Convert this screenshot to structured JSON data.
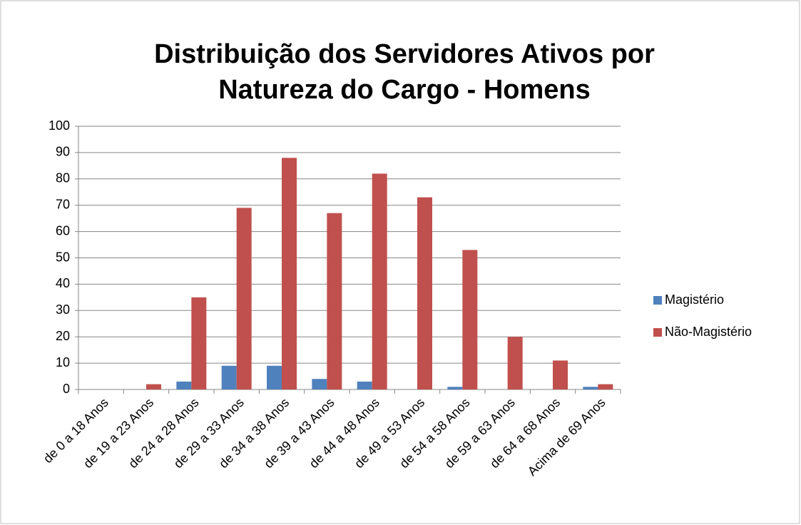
{
  "chart_data": {
    "type": "bar",
    "title": [
      "Distribuição dos Servidores Ativos por",
      "Natureza do Cargo - Homens"
    ],
    "categories": [
      "de 0 a 18 Anos",
      "de 19 a 23 Anos",
      "de 24 a 28 Anos",
      "de 29 a 33 Anos",
      "de 34 a 38 Anos",
      "de 39 a 43 Anos",
      "de 44 a 48 Anos",
      "de 49 a 53 Anos",
      "de 54 a 58 Anos",
      "de 59 a 63 Anos",
      "de 64 a 68 Anos",
      "Acima de 69 Anos"
    ],
    "series": [
      {
        "name": "Magistério",
        "color": "#4f81bd",
        "values": [
          0,
          0,
          3,
          9,
          9,
          4,
          3,
          0,
          1,
          0,
          0,
          1
        ]
      },
      {
        "name": "Não-Magistério",
        "color": "#c0504d",
        "values": [
          0,
          2,
          35,
          69,
          88,
          67,
          82,
          73,
          53,
          20,
          11,
          2
        ]
      }
    ],
    "ylim": [
      0,
      100
    ],
    "yticks": [
      0,
      10,
      20,
      30,
      40,
      50,
      60,
      70,
      80,
      90,
      100
    ],
    "grid": true,
    "legend": "right"
  }
}
